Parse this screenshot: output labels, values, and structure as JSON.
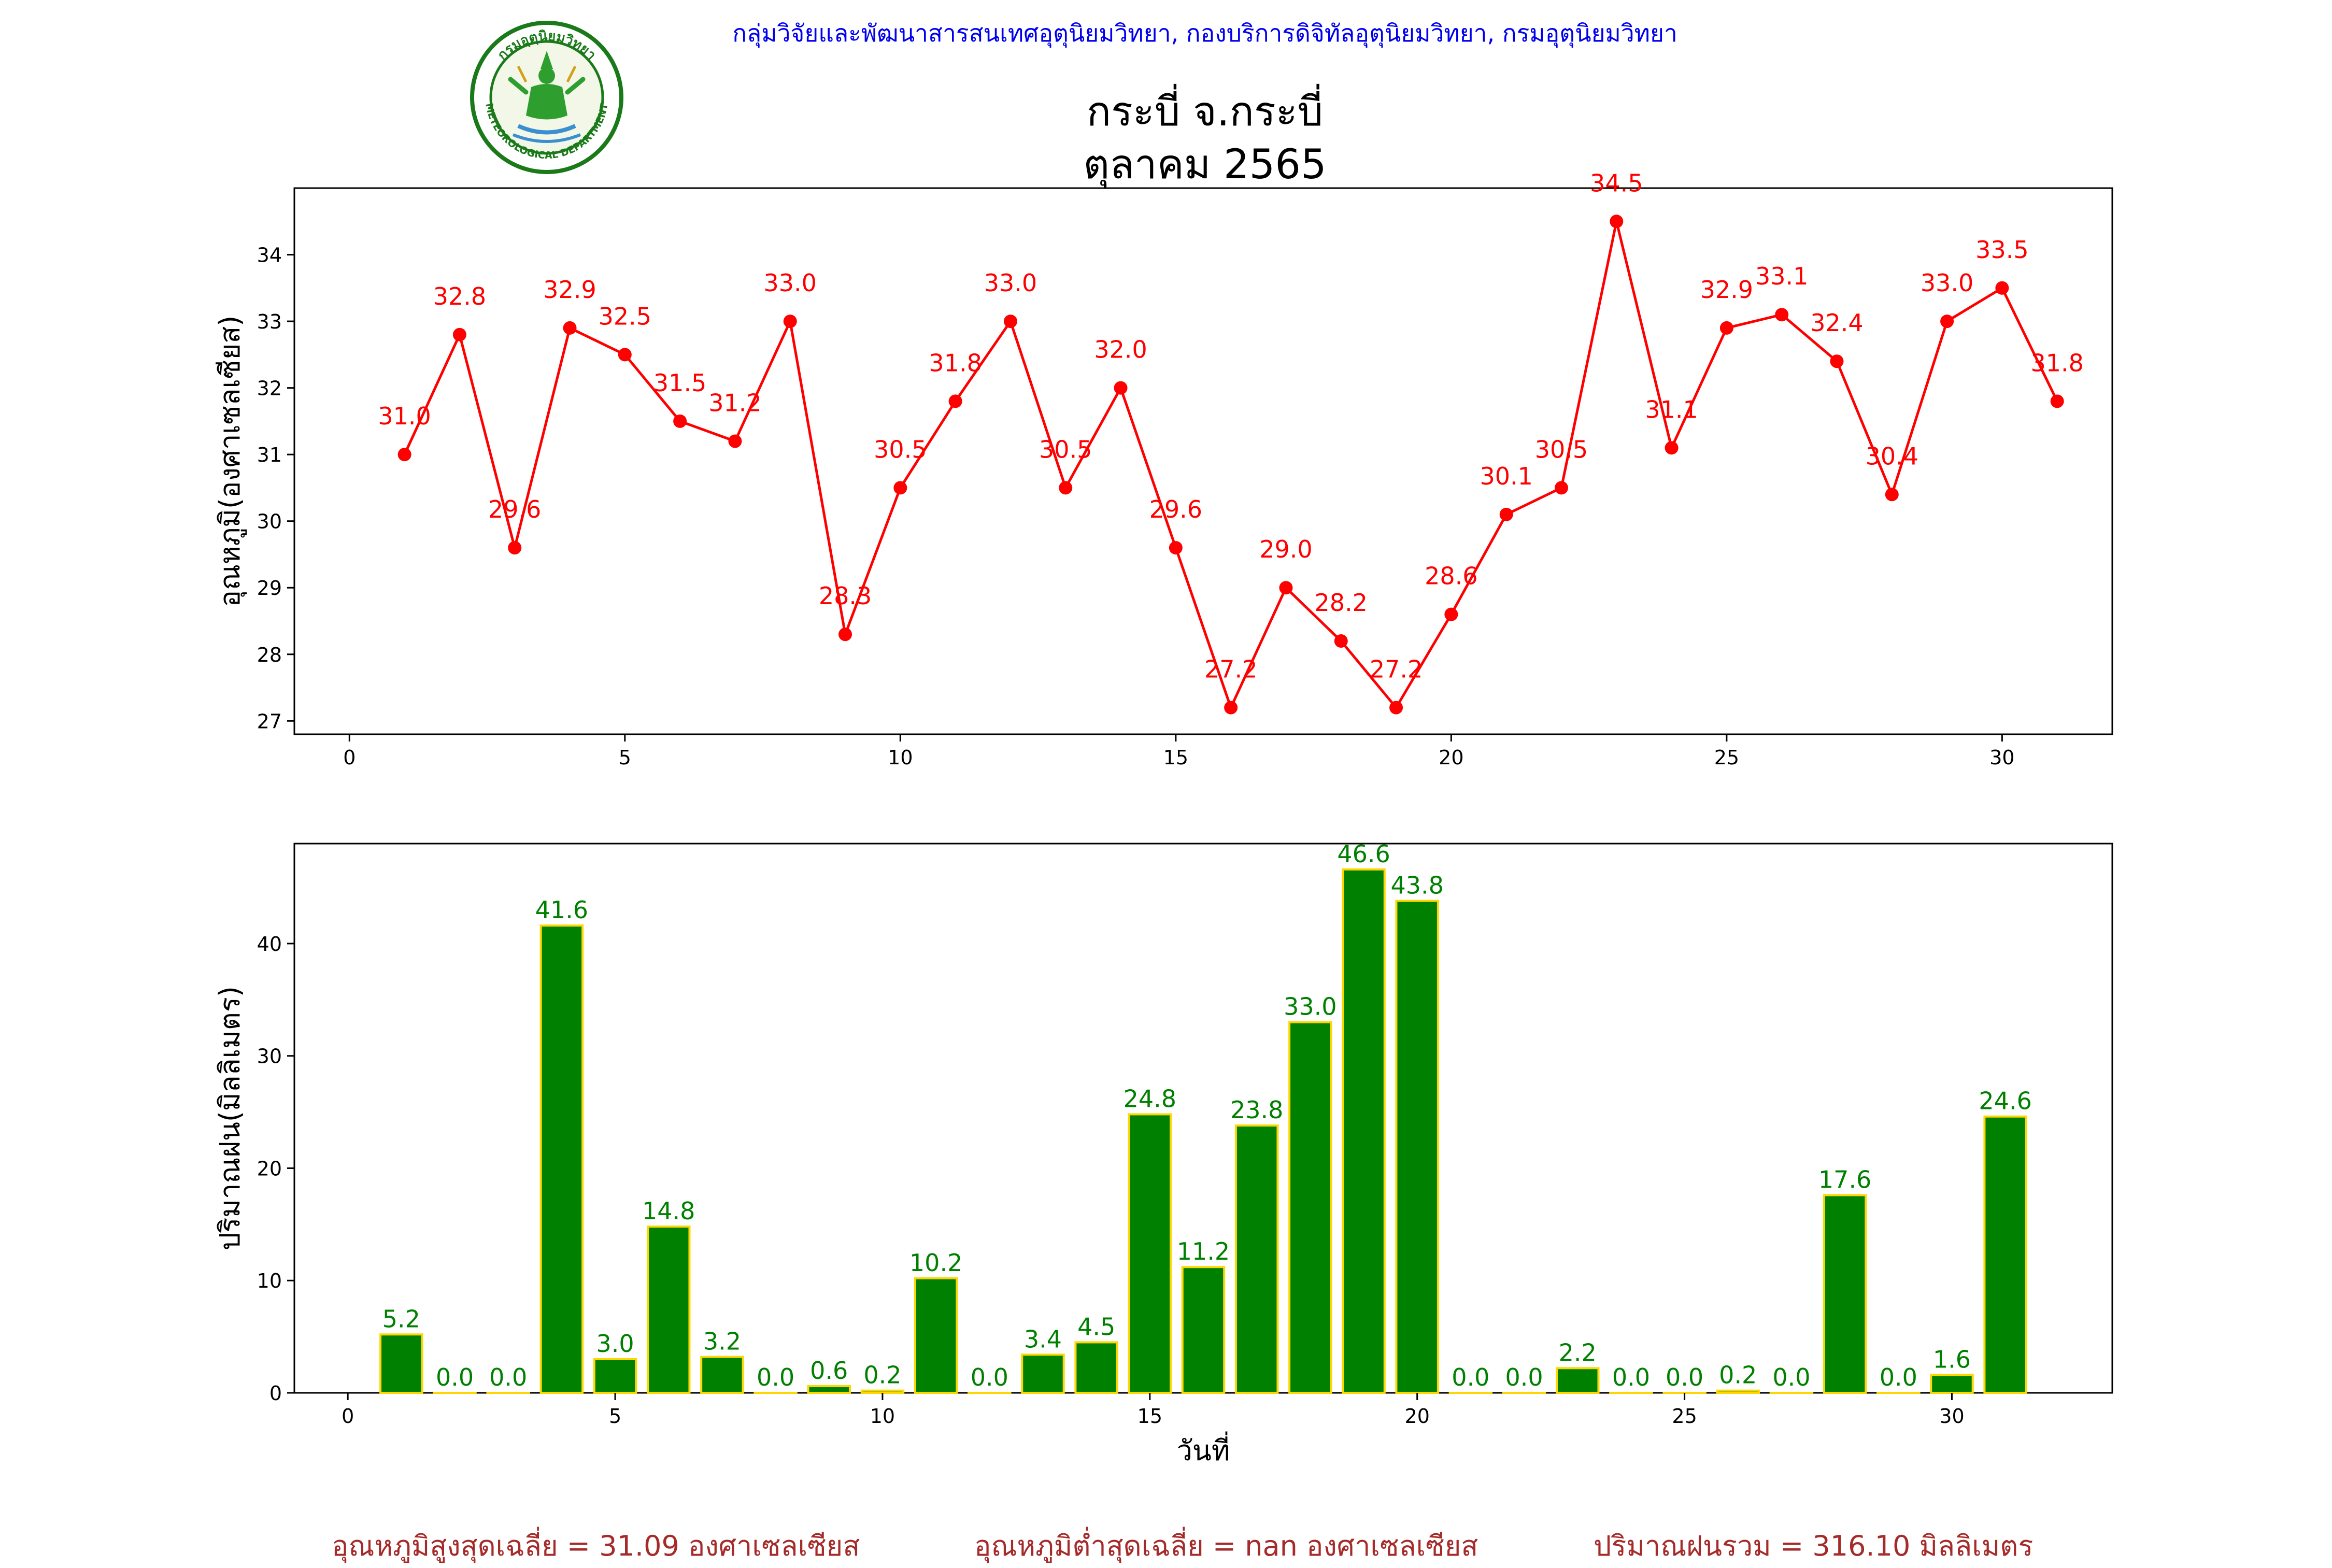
{
  "header": {
    "credit": "กลุ่มวิจัยและพัฒนาสารสนเทศอุตุนิยมวิทยา, กองบริการดิจิทัลอุตุนิยมวิทยา, กรมอุตุนิยมวิทยา",
    "logo_text_top": "กรมอุตุนิยมวิทยา",
    "logo_text_bottom": "METEOROLOGICAL DEPARTMENT"
  },
  "colors": {
    "temperature": "#ff0000",
    "rain_bar": "#008000",
    "rain_edge": "#ffd700",
    "footer": "#a52a2a",
    "credit": "#0000ee"
  },
  "chart_data": [
    {
      "type": "line",
      "title": "กระบี่ จ.กระบี่",
      "subtitle": "ตุลาคม 2565",
      "xlabel": "",
      "ylabel": "อุณหภูมิ(องศาเซลเซียส)",
      "xlim": [
        -1,
        32
      ],
      "ylim": [
        26.8,
        35.0
      ],
      "xticks": [
        0,
        5,
        10,
        15,
        20,
        25,
        30
      ],
      "yticks": [
        27,
        28,
        29,
        30,
        31,
        32,
        33,
        34
      ],
      "grid": false,
      "x": [
        1,
        2,
        3,
        4,
        5,
        6,
        7,
        8,
        9,
        10,
        11,
        12,
        13,
        14,
        15,
        16,
        17,
        18,
        19,
        20,
        21,
        22,
        23,
        24,
        25,
        26,
        27,
        28,
        29,
        30,
        31
      ],
      "values": [
        31.0,
        32.8,
        29.6,
        32.9,
        32.5,
        31.5,
        31.2,
        33.0,
        28.3,
        30.5,
        31.8,
        33.0,
        30.5,
        32.0,
        29.6,
        27.2,
        29.0,
        28.2,
        27.2,
        28.6,
        30.1,
        30.5,
        34.5,
        31.1,
        32.9,
        33.1,
        32.4,
        30.4,
        33.0,
        33.5,
        31.8
      ],
      "labels": [
        "31.0",
        "32.8",
        "29.6",
        "32.9",
        "32.5",
        "31.5",
        "31.2",
        "33.0",
        "28.3",
        "30.5",
        "31.8",
        "33.0",
        "30.5",
        "32.0",
        "29.6",
        "27.2",
        "29.0",
        "28.2",
        "27.2",
        "28.6",
        "30.1",
        "30.5",
        "34.5",
        "31.1",
        "32.9",
        "33.1",
        "32.4",
        "30.4",
        "33.0",
        "33.5",
        "31.8"
      ]
    },
    {
      "type": "bar",
      "xlabel": "วันที่",
      "ylabel": "ปริมาณฝน(มิลลิเมตร)",
      "xlim": [
        -1.0,
        33.0
      ],
      "ylim": [
        0,
        48.9
      ],
      "xticks": [
        0,
        5,
        10,
        15,
        20,
        25,
        30
      ],
      "yticks": [
        0,
        10,
        20,
        30,
        40
      ],
      "grid": false,
      "x": [
        1,
        2,
        3,
        4,
        5,
        6,
        7,
        8,
        9,
        10,
        11,
        12,
        13,
        14,
        15,
        16,
        17,
        18,
        19,
        20,
        21,
        22,
        23,
        24,
        25,
        26,
        27,
        28,
        29,
        30,
        31
      ],
      "values": [
        5.2,
        0.0,
        0.0,
        41.6,
        3.0,
        14.8,
        3.2,
        0.0,
        0.6,
        0.2,
        10.2,
        0.0,
        3.4,
        4.5,
        24.8,
        11.2,
        23.8,
        33.0,
        46.6,
        43.8,
        0.0,
        0.0,
        2.2,
        0.0,
        0.0,
        0.2,
        0.0,
        17.6,
        0.0,
        1.6,
        24.6
      ],
      "labels": [
        "5.2",
        "0.0",
        "0.0",
        "41.6",
        "3.0",
        "14.8",
        "3.2",
        "0.0",
        "0.6",
        "0.2",
        "10.2",
        "0.0",
        "3.4",
        "4.5",
        "24.8",
        "11.2",
        "23.8",
        "33.0",
        "46.6",
        "43.8",
        "0.0",
        "0.0",
        "2.2",
        "0.0",
        "0.0",
        "0.2",
        "0.0",
        "17.6",
        "0.0",
        "1.6",
        "24.6"
      ]
    }
  ],
  "footer": {
    "avg_max": "อุณหภูมิสูงสุดเฉลี่ย = 31.09 องศาเซลเซียส",
    "avg_min": "อุณหภูมิต่ำสุดเฉลี่ย = nan องศาเซลเซียส",
    "rain_total": "ปริมาณฝนรวม = 316.10 มิลลิเมตร"
  }
}
